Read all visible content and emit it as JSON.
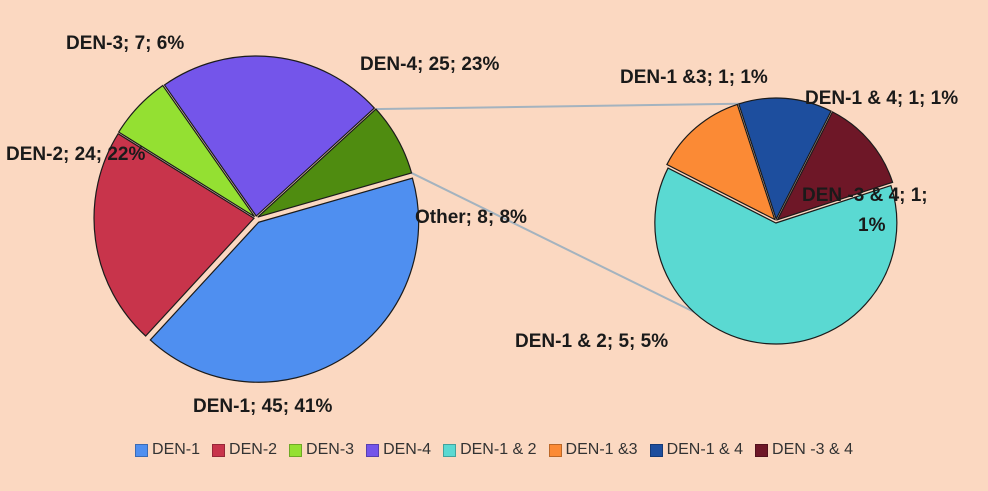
{
  "chart_data": {
    "type": "pie",
    "title": "",
    "main_pie": {
      "slices": [
        {
          "name": "DEN-1",
          "value": 45,
          "percent": 41,
          "label": "DEN-1; 45; 41%",
          "color": "#4f8ff0"
        },
        {
          "name": "DEN-2",
          "value": 24,
          "percent": 22,
          "label": "DEN-2; 24; 22%",
          "color": "#c8344b"
        },
        {
          "name": "DEN-3",
          "value": 7,
          "percent": 6,
          "label": "DEN-3; 7; 6%",
          "color": "#94e032"
        },
        {
          "name": "DEN-4",
          "value": 25,
          "percent": 23,
          "label": "DEN-4; 25; 23%",
          "color": "#7455ea"
        },
        {
          "name": "Other",
          "value": 8,
          "percent": 8,
          "label": "Other; 8; 8%",
          "color": "#4f8c10"
        }
      ]
    },
    "secondary_pie": {
      "slices": [
        {
          "name": "DEN-1 & 2",
          "value": 5,
          "percent": 5,
          "label": "DEN-1 & 2; 5; 5%",
          "color": "#5ad9d2"
        },
        {
          "name": "DEN-1 &3",
          "value": 1,
          "percent": 1,
          "label": "DEN-1 &3; 1; 1%",
          "color": "#fb8a35"
        },
        {
          "name": "DEN-1 & 4",
          "value": 1,
          "percent": 1,
          "label": "DEN-1 & 4; 1; 1%",
          "color": "#1d4e9e"
        },
        {
          "name": "DEN -3 & 4",
          "value": 1,
          "percent": 1,
          "label_line1": "DEN -3 & 4; 1;",
          "label_line2": "1%",
          "color": "#6e1727"
        }
      ]
    },
    "legend": {
      "placement": "bottom",
      "entries": [
        {
          "name": "DEN-1",
          "color": "#4f8ff0"
        },
        {
          "name": "DEN-2",
          "color": "#c8344b"
        },
        {
          "name": "DEN-3",
          "color": "#94e032"
        },
        {
          "name": "DEN-4",
          "color": "#7455ea"
        },
        {
          "name": "DEN-1 & 2",
          "color": "#5ad9d2"
        },
        {
          "name": "DEN-1 &3",
          "color": "#fb8a35"
        },
        {
          "name": "DEN-1 & 4",
          "color": "#1d4e9e"
        },
        {
          "name": "DEN -3 & 4",
          "color": "#6e1727"
        }
      ]
    }
  }
}
